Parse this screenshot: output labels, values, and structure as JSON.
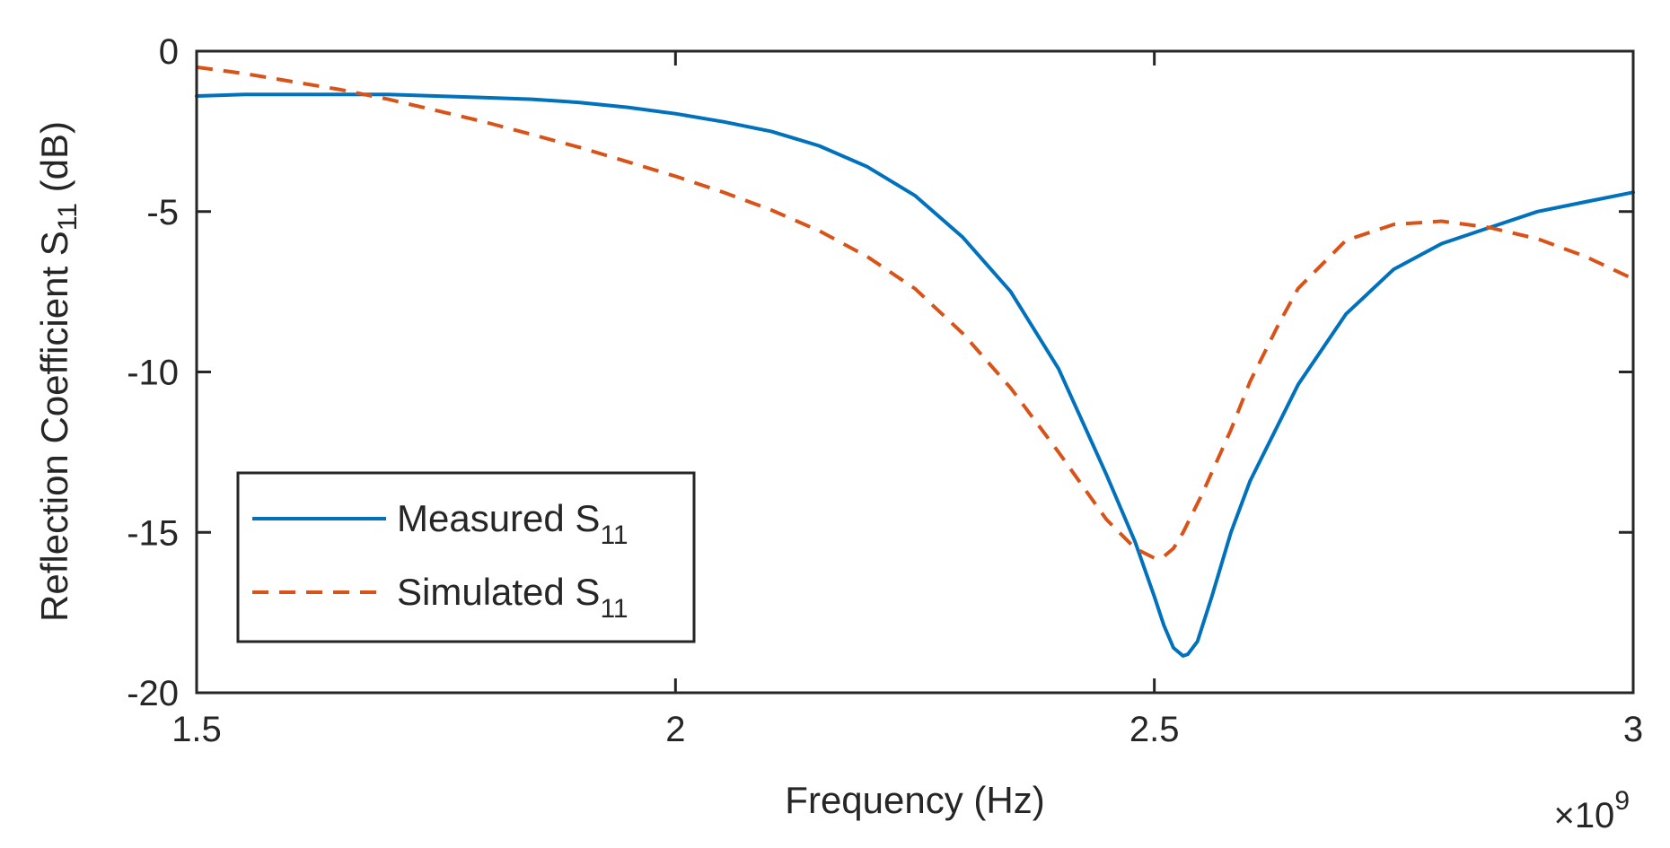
{
  "chart_data": {
    "type": "line",
    "title": "",
    "xlabel": "Frequency (Hz)",
    "ylabel": {
      "main": "Reflection Coefficient S",
      "sub": "11",
      "unit": " (dB)"
    },
    "x_multiplier": {
      "symbol": "×10",
      "exponent": "9"
    },
    "xlim": [
      1.5,
      3
    ],
    "ylim": [
      -20,
      0
    ],
    "x_ticks": [
      1.5,
      2,
      2.5,
      3
    ],
    "x_tick_labels": [
      "1.5",
      "2",
      "2.5",
      "3"
    ],
    "y_ticks": [
      0,
      -5,
      -10,
      -15,
      -20
    ],
    "y_tick_labels": [
      "0",
      "-5",
      "-10",
      "-15",
      "-20"
    ],
    "grid": false,
    "legend_location": "bottom-left",
    "series": [
      {
        "name": "Measured S",
        "name_sub": "11",
        "color": "#0072BD",
        "style": "solid",
        "x": [
          1.5,
          1.55,
          1.6,
          1.65,
          1.7,
          1.75,
          1.8,
          1.85,
          1.9,
          1.95,
          2.0,
          2.05,
          2.1,
          2.15,
          2.2,
          2.25,
          2.3,
          2.35,
          2.4,
          2.45,
          2.48,
          2.5,
          2.51,
          2.52,
          2.53,
          2.535,
          2.545,
          2.56,
          2.58,
          2.6,
          2.65,
          2.7,
          2.75,
          2.8,
          2.85,
          2.9,
          2.95,
          3.0
        ],
        "y": [
          -1.4,
          -1.35,
          -1.35,
          -1.35,
          -1.35,
          -1.4,
          -1.45,
          -1.5,
          -1.6,
          -1.75,
          -1.95,
          -2.2,
          -2.5,
          -2.95,
          -3.6,
          -4.5,
          -5.8,
          -7.5,
          -9.9,
          -13.2,
          -15.3,
          -17.0,
          -17.9,
          -18.6,
          -18.85,
          -18.8,
          -18.4,
          -17.0,
          -15.0,
          -13.4,
          -10.4,
          -8.2,
          -6.8,
          -6.0,
          -5.5,
          -5.0,
          -4.7,
          -4.4
        ]
      },
      {
        "name": "Simulated S",
        "name_sub": "11",
        "color": "#D95319",
        "style": "dashed",
        "x": [
          1.5,
          1.55,
          1.6,
          1.65,
          1.7,
          1.75,
          1.8,
          1.85,
          1.9,
          1.95,
          2.0,
          2.05,
          2.1,
          2.15,
          2.2,
          2.25,
          2.3,
          2.35,
          2.4,
          2.45,
          2.48,
          2.5,
          2.51,
          2.52,
          2.53,
          2.55,
          2.58,
          2.6,
          2.63,
          2.65,
          2.7,
          2.75,
          2.8,
          2.85,
          2.9,
          2.95,
          3.0
        ],
        "y": [
          -0.5,
          -0.7,
          -0.95,
          -1.2,
          -1.5,
          -1.85,
          -2.2,
          -2.6,
          -3.0,
          -3.45,
          -3.9,
          -4.4,
          -4.95,
          -5.6,
          -6.4,
          -7.4,
          -8.8,
          -10.5,
          -12.5,
          -14.6,
          -15.5,
          -15.8,
          -15.75,
          -15.5,
          -15.0,
          -13.8,
          -11.8,
          -10.3,
          -8.5,
          -7.4,
          -5.9,
          -5.4,
          -5.3,
          -5.5,
          -5.85,
          -6.4,
          -7.1
        ]
      }
    ]
  }
}
